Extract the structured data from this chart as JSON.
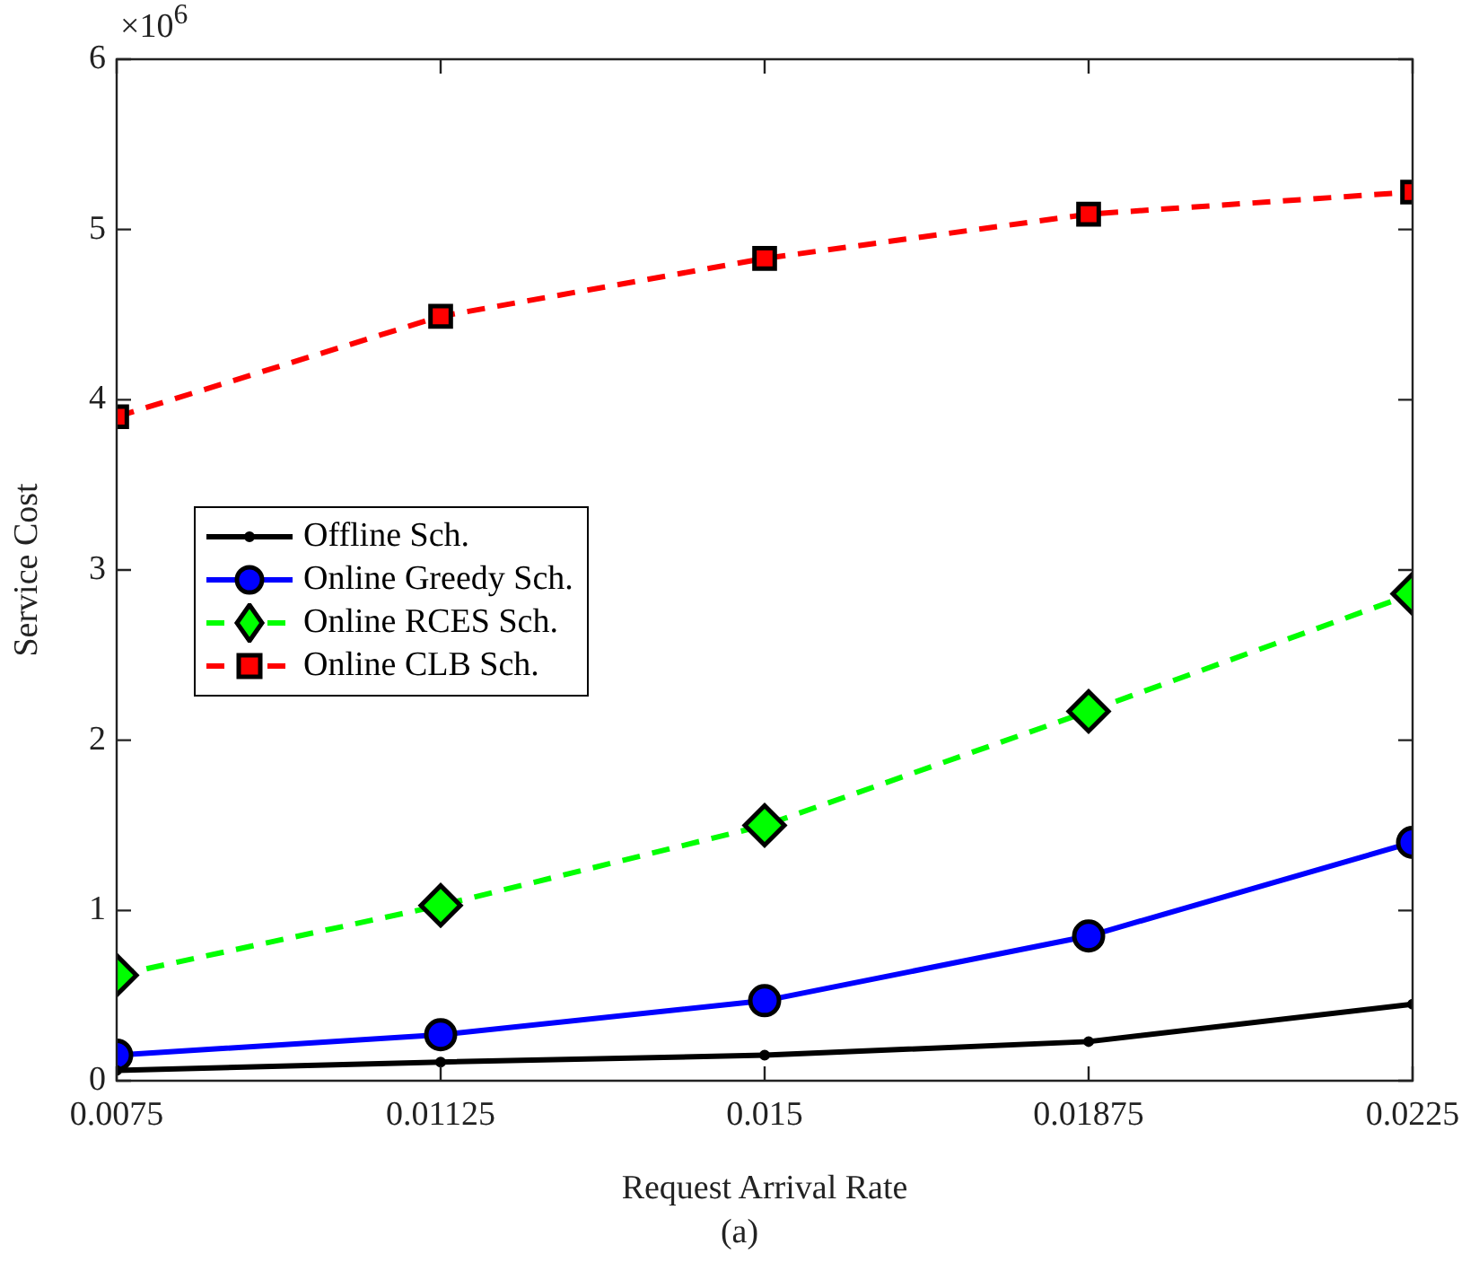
{
  "chart_data": {
    "type": "line",
    "xlabel": "Request Arrival Rate",
    "ylabel": "Service Cost",
    "annotations": [
      "×10$^{6}$",
      "(a)"
    ],
    "x": [
      0.0075,
      0.01125,
      0.015,
      0.01875,
      0.0225
    ],
    "xlim": [
      0.0075,
      0.0225
    ],
    "xticks": [
      0.0075,
      0.01125,
      0.015,
      0.01875,
      0.0225
    ],
    "ylim": [
      0,
      6
    ],
    "yticks": [
      0,
      1,
      2,
      3,
      4,
      5,
      6
    ],
    "grid": false,
    "legend": "left",
    "series": [
      {
        "name": "Offline Sch.",
        "color": "#000000",
        "marker": "circle",
        "line_style": "solid",
        "values": [
          0.06,
          0.11,
          0.15,
          0.23,
          0.45
        ]
      },
      {
        "name": "Online Greedy Sch.",
        "color": "#0000ff",
        "marker": "circle",
        "line_style": "solid",
        "values": [
          0.15,
          0.27,
          0.47,
          0.85,
          1.4
        ]
      },
      {
        "name": "Online RCES Sch.",
        "color": "#00ff00",
        "marker": "diamond",
        "line_style": "dashed",
        "values": [
          0.62,
          1.03,
          1.5,
          2.17,
          2.86
        ]
      },
      {
        "name": "Online CLB Sch.",
        "color": "#ff0000",
        "marker": "square",
        "line_style": "dashed",
        "values": [
          3.9,
          4.49,
          4.83,
          5.09,
          5.22
        ]
      }
    ]
  }
}
